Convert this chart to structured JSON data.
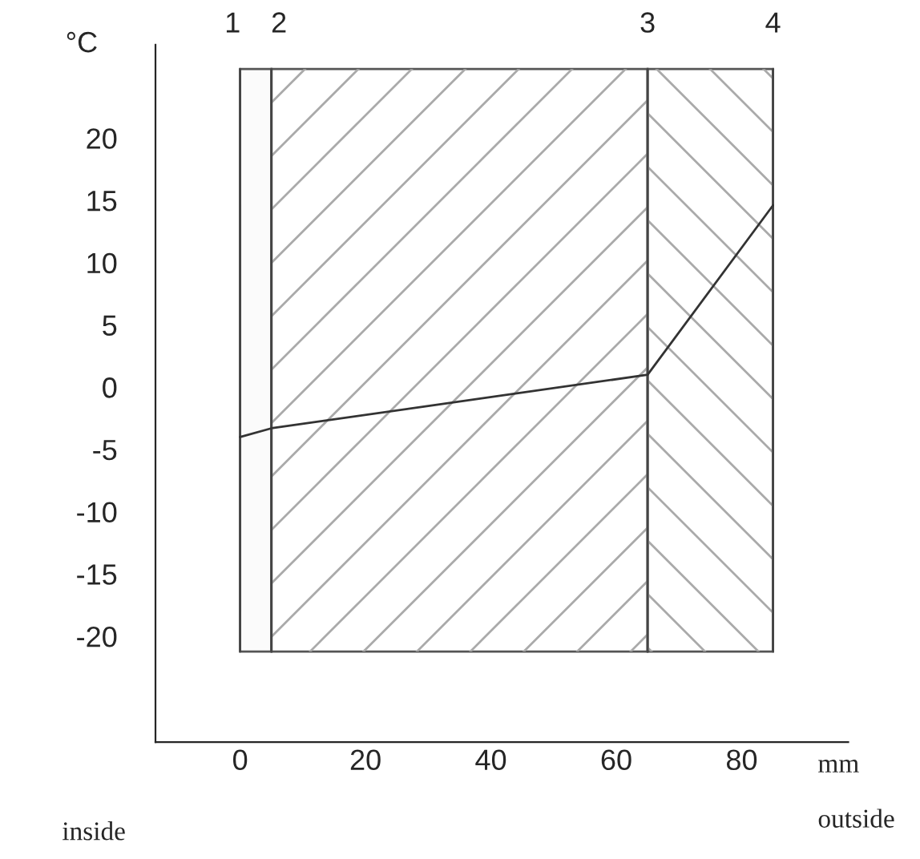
{
  "chart_data": {
    "type": "line",
    "x": [
      0,
      5,
      65,
      85
    ],
    "series": [
      {
        "color": "#333333",
        "values": [
          -4,
          -3.3,
          1,
          14.6
        ]
      }
    ],
    "xlim": [
      -13.5,
      97
    ],
    "ylim": [
      -28.5,
      27.5
    ],
    "xticks": [
      0,
      20,
      40,
      60,
      80
    ],
    "yticks": [
      -20,
      -15,
      -10,
      -5,
      0,
      5,
      10,
      15,
      20
    ],
    "xlabel": "mm",
    "ylabel": "°C",
    "annotations": [
      "outside",
      "inside",
      "1",
      "2",
      "3",
      "4"
    ],
    "ref_lines": [
      {
        "axis": "x",
        "value": 0
      },
      {
        "axis": "x",
        "value": 5
      },
      {
        "axis": "x",
        "value": 65
      },
      {
        "axis": "x",
        "value": 85
      }
    ],
    "bands": [
      {
        "axis": "x",
        "from": 0,
        "to": 5,
        "label": null,
        "color": "#fbfbfb"
      },
      {
        "axis": "x",
        "from": 5,
        "to": 65,
        "label": null,
        "color": "#ffffff"
      },
      {
        "axis": "x",
        "from": 65,
        "to": 85,
        "label": null,
        "color": "#ffffff"
      }
    ],
    "grid": false,
    "legend": false,
    "marker": "none",
    "line_style": "solid"
  }
}
